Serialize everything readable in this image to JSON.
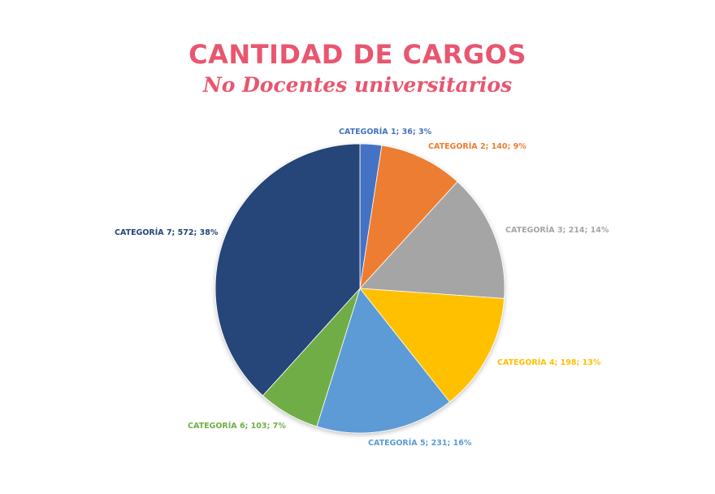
{
  "header": {
    "title": "CANTIDAD DE CARGOS",
    "subtitle": "No Docentes universitarios"
  },
  "chart_data": {
    "type": "pie",
    "title": "CANTIDAD DE CARGOS",
    "subtitle": "No Docentes universitarios",
    "categories": [
      "CATEGORÍA 1",
      "CATEGORÍA 2",
      "CATEGORÍA 3",
      "CATEGORÍA 4",
      "CATEGORÍA 5",
      "CATEGORÍA 6",
      "CATEGORÍA 7"
    ],
    "values": [
      36,
      140,
      214,
      198,
      231,
      103,
      572
    ],
    "percentages": [
      3,
      9,
      14,
      13,
      16,
      7,
      38
    ],
    "colors": [
      "#4472c4",
      "#ed7d31",
      "#a5a5a5",
      "#ffc000",
      "#5b9bd5",
      "#70ad47",
      "#264478"
    ],
    "labels": [
      "CATEGORÍA 1; 36; 3%",
      "CATEGORÍA 2; 140; 9%",
      "CATEGORÍA 3; 214; 14%",
      "CATEGORÍA 4; 198; 13%",
      "CATEGORÍA 5; 231; 16%",
      "CATEGORÍA 6; 103; 7%",
      "CATEGORÍA 7; 572; 38%"
    ],
    "legend": "none (data labels)",
    "start_angle": "12 o'clock, clockwise"
  }
}
